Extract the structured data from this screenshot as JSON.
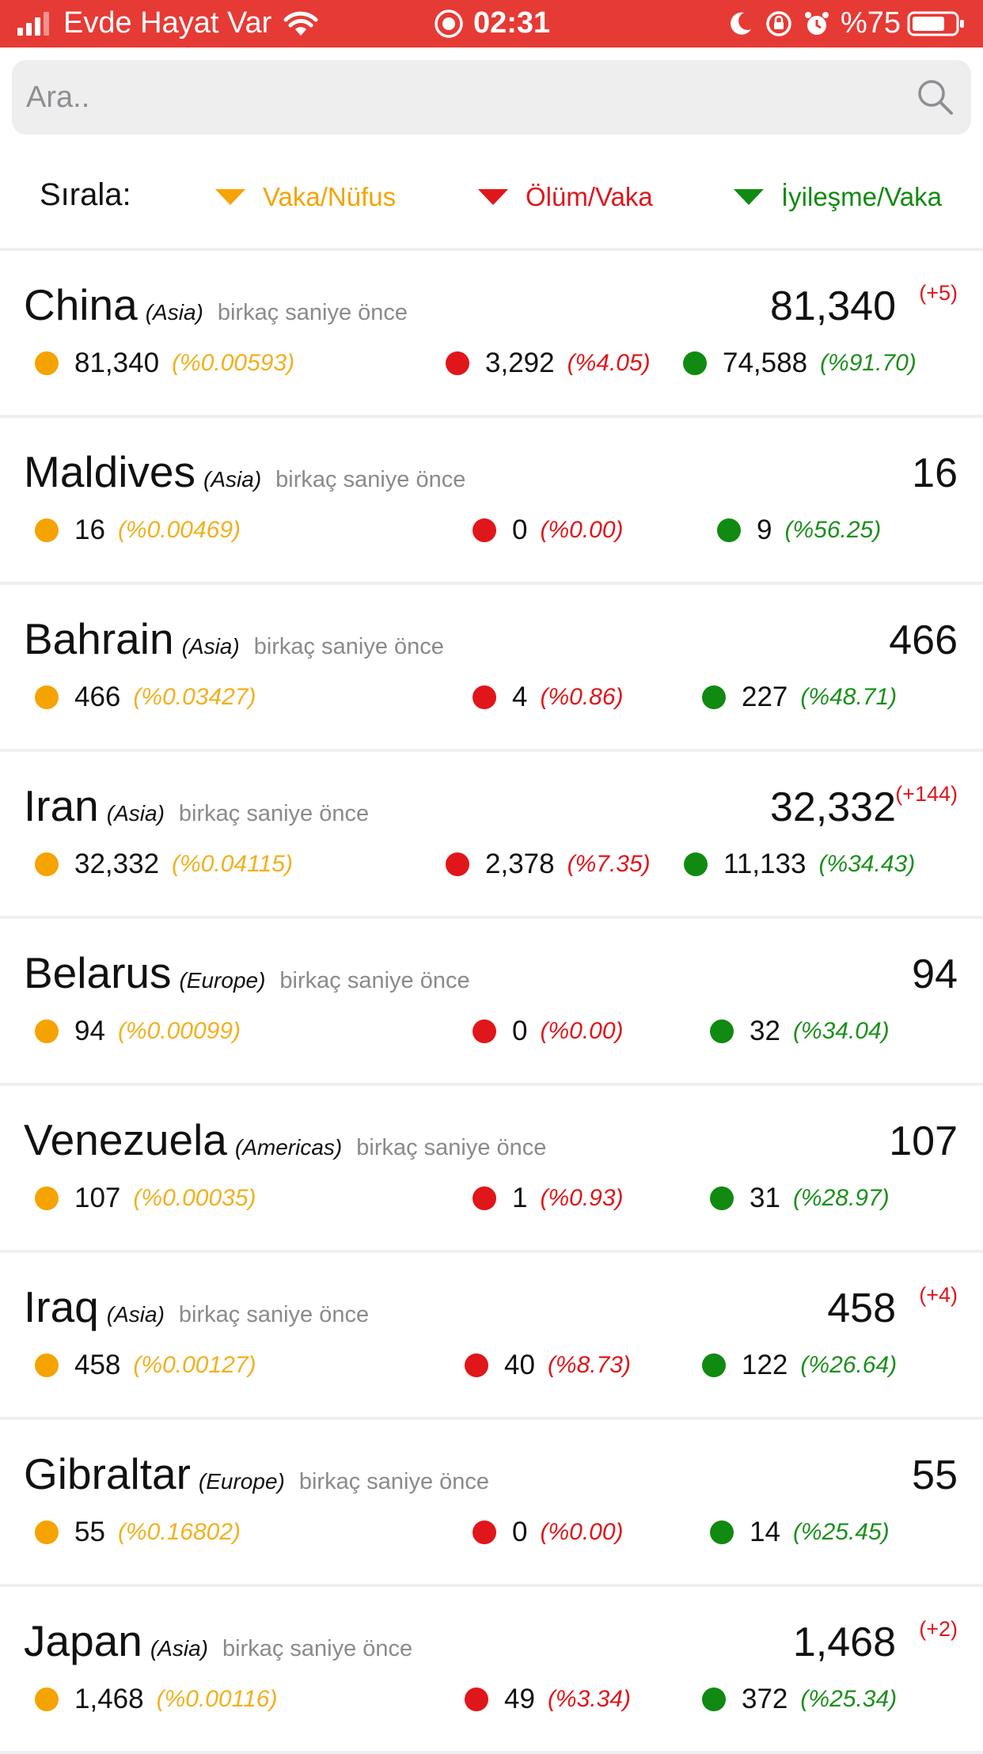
{
  "status_bar": {
    "carrier": "Evde Hayat Var",
    "time": "02:31",
    "battery": "%75",
    "bar_color": "#e63a35"
  },
  "search": {
    "placeholder": "Ara.."
  },
  "sort": {
    "label": "Sırala:",
    "options": [
      {
        "label": "Vaka/Nüfus",
        "color": "#f5a300"
      },
      {
        "label": "Ölüm/Vaka",
        "color": "#e0161b"
      },
      {
        "label": "İyileşme/Vaka",
        "color": "#108a10"
      }
    ]
  },
  "colors": {
    "cases": "#f5a300",
    "deaths": "#e0161b",
    "recovered": "#108a10",
    "cases_pct": "#f2b01e",
    "deaths_pct": "#e0161b",
    "recovered_pct": "#1c8f1c"
  },
  "rows": [
    {
      "country": "China",
      "continent": "(Asia)",
      "updated": "birkaç saniye önce",
      "total": "81,340",
      "delta": "(+5)",
      "cases": "81,340",
      "cases_pct": "(%0.00593)",
      "deaths": "3,292",
      "deaths_pct": "(%4.05)",
      "recovered": "74,588",
      "recovered_pct": "(%91.70)"
    },
    {
      "country": "Maldives",
      "continent": "(Asia)",
      "updated": "birkaç saniye önce",
      "total": "16",
      "delta": "",
      "cases": "16",
      "cases_pct": "(%0.00469)",
      "deaths": "0",
      "deaths_pct": "(%0.00)",
      "recovered": "9",
      "recovered_pct": "(%56.25)"
    },
    {
      "country": "Bahrain",
      "continent": "(Asia)",
      "updated": "birkaç saniye önce",
      "total": "466",
      "delta": "",
      "cases": "466",
      "cases_pct": "(%0.03427)",
      "deaths": "4",
      "deaths_pct": "(%0.86)",
      "recovered": "227",
      "recovered_pct": "(%48.71)"
    },
    {
      "country": "Iran",
      "continent": "(Asia)",
      "updated": "birkaç saniye önce",
      "total": "32,332",
      "delta": "(+144)",
      "cases": "32,332",
      "cases_pct": "(%0.04115)",
      "deaths": "2,378",
      "deaths_pct": "(%7.35)",
      "recovered": "11,133",
      "recovered_pct": "(%34.43)"
    },
    {
      "country": "Belarus",
      "continent": "(Europe)",
      "updated": "birkaç saniye önce",
      "total": "94",
      "delta": "",
      "cases": "94",
      "cases_pct": "(%0.00099)",
      "deaths": "0",
      "deaths_pct": "(%0.00)",
      "recovered": "32",
      "recovered_pct": "(%34.04)"
    },
    {
      "country": "Venezuela",
      "continent": "(Americas)",
      "updated": "birkaç saniye önce",
      "total": "107",
      "delta": "",
      "cases": "107",
      "cases_pct": "(%0.00035)",
      "deaths": "1",
      "deaths_pct": "(%0.93)",
      "recovered": "31",
      "recovered_pct": "(%28.97)"
    },
    {
      "country": "Iraq",
      "continent": "(Asia)",
      "updated": "birkaç saniye önce",
      "total": "458",
      "delta": "(+4)",
      "cases": "458",
      "cases_pct": "(%0.00127)",
      "deaths": "40",
      "deaths_pct": "(%8.73)",
      "recovered": "122",
      "recovered_pct": "(%26.64)"
    },
    {
      "country": "Gibraltar",
      "continent": "(Europe)",
      "updated": "birkaç saniye önce",
      "total": "55",
      "delta": "",
      "cases": "55",
      "cases_pct": "(%0.16802)",
      "deaths": "0",
      "deaths_pct": "(%0.00)",
      "recovered": "14",
      "recovered_pct": "(%25.45)"
    },
    {
      "country": "Japan",
      "continent": "(Asia)",
      "updated": "birkaç saniye önce",
      "total": "1,468",
      "delta": "(+2)",
      "cases": "1,468",
      "cases_pct": "(%0.00116)",
      "deaths": "49",
      "deaths_pct": "(%3.34)",
      "recovered": "372",
      "recovered_pct": "(%25.34)"
    }
  ]
}
